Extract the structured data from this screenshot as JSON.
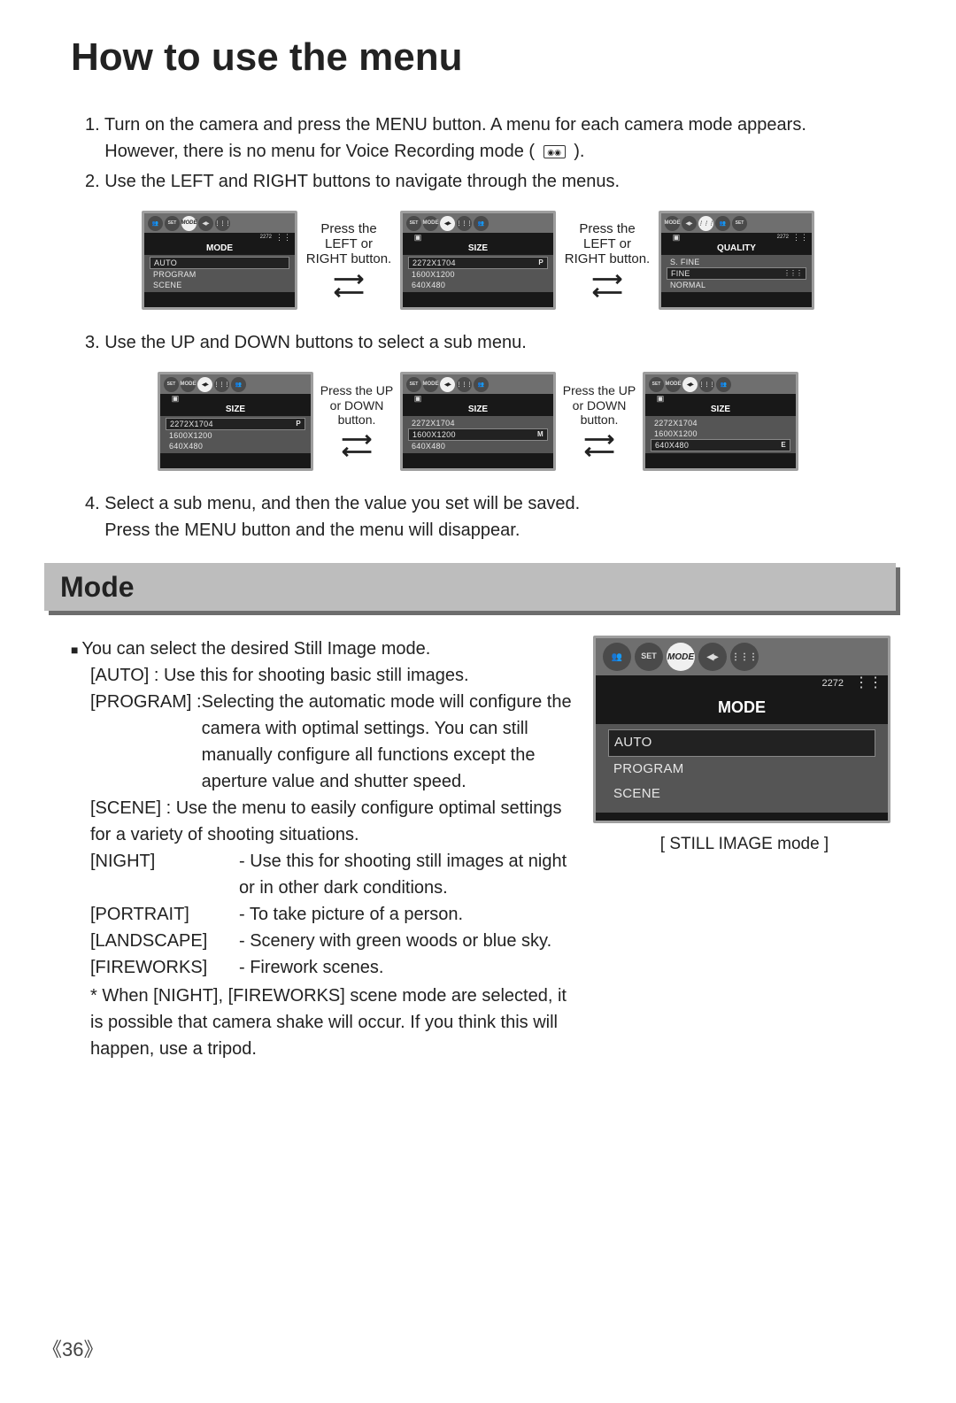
{
  "page_title": "How to use the menu",
  "page_number": "36",
  "steps": {
    "s1a": "1. Turn on the camera and press the MENU button. A menu for each camera mode appears.",
    "s1b": "However, there is no menu for Voice Recording mode (",
    "s1c": ").",
    "s2": "2. Use the LEFT and RIGHT buttons to navigate through the menus.",
    "s3": "3. Use the UP and DOWN buttons to select a sub menu.",
    "s4a": "4. Select a sub menu, and then the value you set will be saved.",
    "s4b": "Press the MENU button and the menu will disappear."
  },
  "between": {
    "lr": "Press the LEFT or RIGHT button.",
    "ud": "Press the UP or DOWN button."
  },
  "screens": {
    "mode": {
      "title": "MODE",
      "items": [
        {
          "label": "AUTO",
          "hl": true
        },
        {
          "label": "PROGRAM"
        },
        {
          "label": "SCENE"
        }
      ],
      "subtext": "2272",
      "tabs": [
        "face",
        "SET",
        "MODE",
        "nav",
        "grid"
      ],
      "active_idx": 2
    },
    "size1": {
      "title": "SIZE",
      "items": [
        {
          "label": "2272X1704",
          "tag": "P",
          "hl": true
        },
        {
          "label": "1600X1200"
        },
        {
          "label": "640X480"
        }
      ],
      "subtext": "",
      "tabs": [
        "SET",
        "MODE",
        "nav",
        "grid",
        "face"
      ],
      "active_idx": 2,
      "show_cam": true
    },
    "quality": {
      "title": "QUALITY",
      "items": [
        {
          "label": "S. FINE"
        },
        {
          "label": "FINE",
          "hl": true,
          "dots": true
        },
        {
          "label": "NORMAL"
        }
      ],
      "subtext": "2272",
      "tabs": [
        "MODE",
        "nav",
        "grid",
        "face",
        "SET"
      ],
      "active_idx": 2,
      "show_cam": true
    },
    "size_row2_a": {
      "title": "SIZE",
      "items": [
        {
          "label": "2272X1704",
          "tag": "P",
          "hl": true
        },
        {
          "label": "1600X1200"
        },
        {
          "label": "640X480"
        }
      ],
      "tabs": [
        "SET",
        "MODE",
        "nav",
        "grid",
        "face"
      ],
      "active_idx": 2,
      "show_cam": true
    },
    "size_row2_b": {
      "title": "SIZE",
      "items": [
        {
          "label": "2272X1704"
        },
        {
          "label": "1600X1200",
          "tag": "M",
          "hl": true
        },
        {
          "label": "640X480"
        }
      ],
      "tabs": [
        "SET",
        "MODE",
        "nav",
        "grid",
        "face"
      ],
      "active_idx": 2,
      "show_cam": true
    },
    "size_row2_c": {
      "title": "SIZE",
      "items": [
        {
          "label": "2272X1704"
        },
        {
          "label": "1600X1200"
        },
        {
          "label": "640X480",
          "tag": "E",
          "hl": true
        }
      ],
      "tabs": [
        "SET",
        "MODE",
        "nav",
        "grid",
        "face"
      ],
      "active_idx": 2,
      "show_cam": true
    },
    "mode_big": {
      "title": "MODE",
      "items": [
        {
          "label": "AUTO",
          "hl": true
        },
        {
          "label": "PROGRAM"
        },
        {
          "label": "SCENE"
        }
      ],
      "subtext": "2272",
      "tabs": [
        "face",
        "SET",
        "MODE",
        "nav",
        "grid"
      ],
      "active_idx": 2
    }
  },
  "section_heading": "Mode",
  "mode_text": {
    "intro": "You can select the desired Still Image mode.",
    "auto": "[AUTO] : Use this for shooting basic still images.",
    "program_key": "[PROGRAM] : ",
    "program_val": "Selecting the automatic mode will configure the camera with optimal settings. You can still manually configure all functions except the aperture value and shutter speed.",
    "scene_key": "[SCENE] : ",
    "scene_val": "Use the menu to easily configure optimal settings for a variety of shooting situations.",
    "defs": [
      {
        "k": "[NIGHT]",
        "v": "- Use this for shooting still images at night or in other dark conditions."
      },
      {
        "k": "[PORTRAIT]",
        "v": "- To take picture of a person."
      },
      {
        "k": "[LANDSCAPE]",
        "v": "- Scenery with green woods or blue sky."
      },
      {
        "k": "[FIREWORKS]",
        "v": "- Firework scenes."
      }
    ],
    "note": "* When [NIGHT], [FIREWORKS] scene mode are selected, it is possible that camera shake will occur. If you think this will happen, use a tripod.",
    "caption": "[ STILL IMAGE mode ]"
  }
}
